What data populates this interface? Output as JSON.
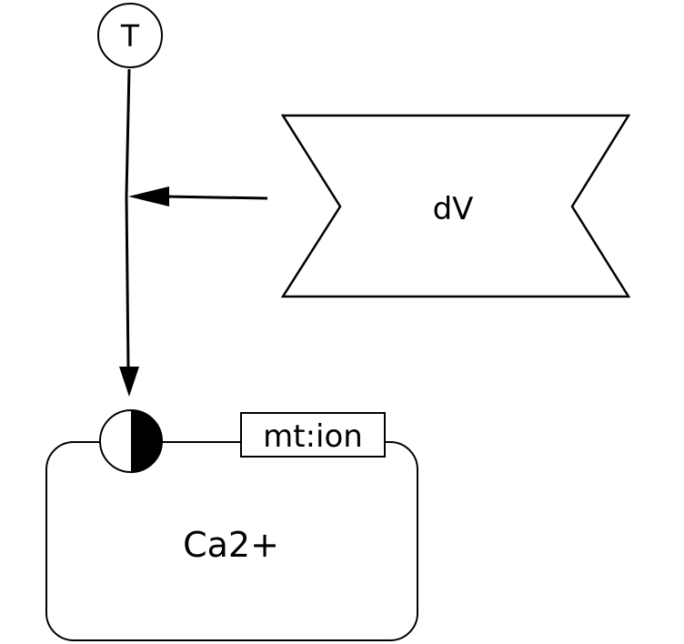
{
  "diagram": {
    "source_node": {
      "label": "T"
    },
    "modulator_node": {
      "label": "dV"
    },
    "target_node": {
      "label": "Ca2+"
    },
    "unit_of_information": {
      "label": "mt:ion"
    }
  }
}
